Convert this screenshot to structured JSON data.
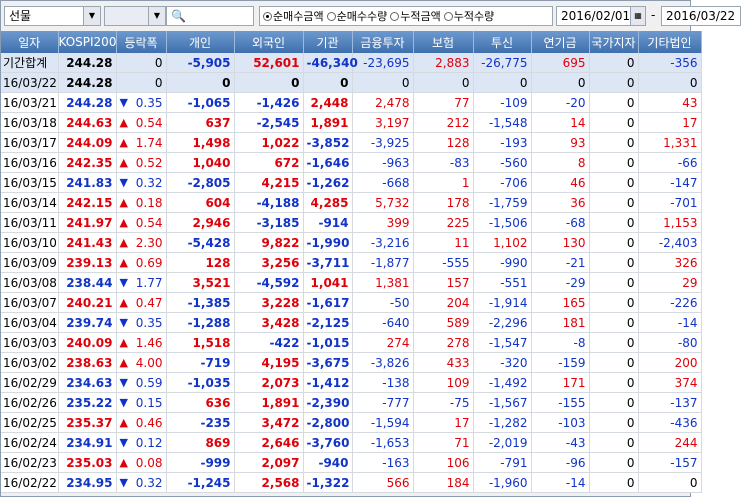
{
  "toolbar": {
    "market": "선물",
    "options": [
      "순매수금액",
      "순매수수량",
      "누적금액",
      "누적수량"
    ],
    "selected": 0,
    "date_from": "2016/02/01",
    "separator": "-",
    "date_to": "2016/03/22"
  },
  "table": {
    "headers": [
      "일자",
      "KOSPI200",
      "등락폭",
      "개인",
      "외국인",
      "기관",
      "금융투자",
      "보험",
      "투신",
      "연기금",
      "국가지자",
      "기타법인"
    ],
    "rows": [
      {
        "date": "기간합계",
        "kospi": "244.28",
        "change": "0",
        "values": [
          "-5,905",
          "52,601",
          "-46,340",
          "-23,695",
          "2,883",
          "-26,775",
          "695",
          "0",
          "-356"
        ]
      },
      {
        "date": "16/03/22",
        "kospi": "244.28",
        "change": "0",
        "values": [
          "0",
          "0",
          "0",
          "0",
          "0",
          "0",
          "0",
          "0",
          "0"
        ]
      },
      {
        "date": "16/03/21",
        "kospi": "244.28",
        "arrow": "▼",
        "change": "0.35",
        "values": [
          "-1,065",
          "-1,426",
          "2,448",
          "2,478",
          "77",
          "-109",
          "-20",
          "0",
          "43"
        ]
      },
      {
        "date": "16/03/18",
        "kospi": "244.63",
        "arrow": "▲",
        "change": "0.54",
        "values": [
          "637",
          "-2,545",
          "1,891",
          "3,197",
          "212",
          "-1,548",
          "14",
          "0",
          "17"
        ]
      },
      {
        "date": "16/03/17",
        "kospi": "244.09",
        "arrow": "▲",
        "change": "1.74",
        "values": [
          "1,498",
          "1,022",
          "-3,852",
          "-3,925",
          "128",
          "-193",
          "93",
          "0",
          "1,331"
        ]
      },
      {
        "date": "16/03/16",
        "kospi": "242.35",
        "arrow": "▲",
        "change": "0.52",
        "values": [
          "1,040",
          "672",
          "-1,646",
          "-963",
          "-83",
          "-560",
          "8",
          "0",
          "-66"
        ]
      },
      {
        "date": "16/03/15",
        "kospi": "241.83",
        "arrow": "▼",
        "change": "0.32",
        "values": [
          "-2,805",
          "4,215",
          "-1,262",
          "-668",
          "1",
          "-706",
          "46",
          "0",
          "-147"
        ]
      },
      {
        "date": "16/03/14",
        "kospi": "242.15",
        "arrow": "▲",
        "change": "0.18",
        "values": [
          "604",
          "-4,188",
          "4,285",
          "5,732",
          "178",
          "-1,759",
          "36",
          "0",
          "-701"
        ]
      },
      {
        "date": "16/03/11",
        "kospi": "241.97",
        "arrow": "▲",
        "change": "0.54",
        "values": [
          "2,946",
          "-3,185",
          "-914",
          "399",
          "225",
          "-1,506",
          "-68",
          "0",
          "1,153"
        ]
      },
      {
        "date": "16/03/10",
        "kospi": "241.43",
        "arrow": "▲",
        "change": "2.30",
        "values": [
          "-5,428",
          "9,822",
          "-1,990",
          "-3,216",
          "11",
          "1,102",
          "130",
          "0",
          "-2,403"
        ]
      },
      {
        "date": "16/03/09",
        "kospi": "239.13",
        "arrow": "▲",
        "change": "0.69",
        "values": [
          "128",
          "3,256",
          "-3,711",
          "-1,877",
          "-555",
          "-990",
          "-21",
          "0",
          "326"
        ]
      },
      {
        "date": "16/03/08",
        "kospi": "238.44",
        "arrow": "▼",
        "change": "1.77",
        "values": [
          "3,521",
          "-4,592",
          "1,041",
          "1,381",
          "157",
          "-551",
          "-29",
          "0",
          "29"
        ]
      },
      {
        "date": "16/03/07",
        "kospi": "240.21",
        "arrow": "▲",
        "change": "0.47",
        "values": [
          "-1,385",
          "3,228",
          "-1,617",
          "-50",
          "204",
          "-1,914",
          "165",
          "0",
          "-226"
        ]
      },
      {
        "date": "16/03/04",
        "kospi": "239.74",
        "arrow": "▼",
        "change": "0.35",
        "values": [
          "-1,288",
          "3,428",
          "-2,125",
          "-640",
          "589",
          "-2,296",
          "181",
          "0",
          "-14"
        ]
      },
      {
        "date": "16/03/03",
        "kospi": "240.09",
        "arrow": "▲",
        "change": "1.46",
        "values": [
          "1,518",
          "-422",
          "-1,015",
          "274",
          "278",
          "-1,547",
          "-8",
          "0",
          "-80"
        ]
      },
      {
        "date": "16/03/02",
        "kospi": "238.63",
        "arrow": "▲",
        "change": "4.00",
        "values": [
          "-719",
          "4,195",
          "-3,675",
          "-3,826",
          "433",
          "-320",
          "-159",
          "0",
          "200"
        ]
      },
      {
        "date": "16/02/29",
        "kospi": "234.63",
        "arrow": "▼",
        "change": "0.59",
        "values": [
          "-1,035",
          "2,073",
          "-1,412",
          "-138",
          "109",
          "-1,492",
          "171",
          "0",
          "374"
        ]
      },
      {
        "date": "16/02/26",
        "kospi": "235.22",
        "arrow": "▼",
        "change": "0.15",
        "values": [
          "636",
          "1,891",
          "-2,390",
          "-777",
          "-75",
          "-1,567",
          "-155",
          "0",
          "-137"
        ]
      },
      {
        "date": "16/02/25",
        "kospi": "235.37",
        "arrow": "▲",
        "change": "0.46",
        "values": [
          "-235",
          "3,472",
          "-2,800",
          "-1,594",
          "17",
          "-1,282",
          "-103",
          "0",
          "-436"
        ]
      },
      {
        "date": "16/02/24",
        "kospi": "234.91",
        "arrow": "▼",
        "change": "0.12",
        "values": [
          "869",
          "2,646",
          "-3,760",
          "-1,653",
          "71",
          "-2,019",
          "-43",
          "0",
          "244"
        ]
      },
      {
        "date": "16/02/23",
        "kospi": "235.03",
        "arrow": "▲",
        "change": "0.08",
        "values": [
          "-999",
          "2,097",
          "-940",
          "-163",
          "106",
          "-791",
          "-96",
          "0",
          "-157"
        ]
      },
      {
        "date": "16/02/22",
        "kospi": "234.95",
        "arrow": "▼",
        "change": "0.32",
        "values": [
          "-1,245",
          "2,568",
          "-1,322",
          "566",
          "184",
          "-1,960",
          "-14",
          "0",
          "0"
        ]
      }
    ]
  }
}
